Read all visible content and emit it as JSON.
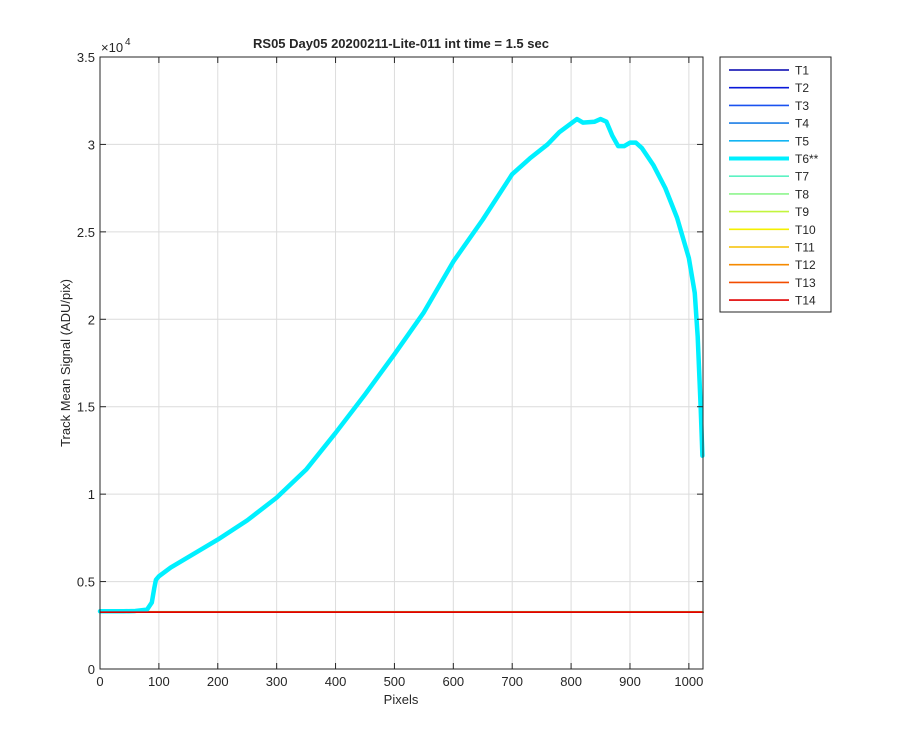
{
  "chart_data": {
    "type": "line",
    "title": "RS05 Day05 20200211-Lite-011 int time = 1.5 sec",
    "xlabel": "Pixels",
    "ylabel": "Track Mean Signal (ADU/pix)",
    "y_exponent_base": "×10",
    "y_exponent_power": "4",
    "xlim": [
      0,
      1024
    ],
    "ylim": [
      0,
      35000
    ],
    "x_ticks": [
      0,
      100,
      200,
      300,
      400,
      500,
      600,
      700,
      800,
      900,
      1000
    ],
    "y_ticks": [
      0,
      5000,
      10000,
      15000,
      20000,
      25000,
      30000,
      35000
    ],
    "y_tick_labels": [
      "0",
      "0.5",
      "1",
      "1.5",
      "2",
      "2.5",
      "3",
      "3.5"
    ],
    "grid": true,
    "legend_position": "outside-right",
    "series": [
      {
        "name": "T1",
        "color": "#0000ad",
        "width": 1.6,
        "x": [
          0,
          1024
        ],
        "y": [
          3250,
          3250
        ]
      },
      {
        "name": "T2",
        "color": "#0a19d9",
        "width": 1.6,
        "x": [
          0,
          1024
        ],
        "y": [
          3250,
          3250
        ]
      },
      {
        "name": "T3",
        "color": "#1a52f0",
        "width": 1.6,
        "x": [
          0,
          1024
        ],
        "y": [
          3250,
          3250
        ]
      },
      {
        "name": "T4",
        "color": "#1e7fe6",
        "width": 1.6,
        "x": [
          0,
          1024
        ],
        "y": [
          3250,
          3250
        ]
      },
      {
        "name": "T5",
        "color": "#13b4f2",
        "width": 1.6,
        "x": [
          0,
          1024
        ],
        "y": [
          3250,
          3250
        ]
      },
      {
        "name": "T6**",
        "color": "#00f0ff",
        "width": 4.5,
        "x": [
          0,
          20,
          40,
          60,
          80,
          88,
          92,
          95,
          100,
          120,
          150,
          180,
          200,
          250,
          300,
          350,
          400,
          450,
          500,
          550,
          600,
          650,
          700,
          730,
          760,
          780,
          800,
          810,
          820,
          840,
          850,
          860,
          870,
          880,
          890,
          900,
          910,
          920,
          940,
          960,
          980,
          1000,
          1010,
          1015,
          1020,
          1023
        ],
        "y": [
          3300,
          3300,
          3300,
          3320,
          3400,
          3800,
          4600,
          5100,
          5300,
          5800,
          6400,
          7000,
          7400,
          8500,
          9800,
          11400,
          13500,
          15700,
          18000,
          20400,
          23300,
          25700,
          28300,
          29200,
          30000,
          30700,
          31200,
          31450,
          31250,
          31300,
          31450,
          31300,
          30500,
          29900,
          29900,
          30100,
          30100,
          29800,
          28800,
          27500,
          25800,
          23500,
          21500,
          19000,
          15000,
          12200
        ]
      },
      {
        "name": "T7",
        "color": "#5cf2c2",
        "width": 1.6,
        "x": [
          0,
          1024
        ],
        "y": [
          3280,
          3280
        ]
      },
      {
        "name": "T8",
        "color": "#8ef58e",
        "width": 1.6,
        "x": [
          0,
          1024
        ],
        "y": [
          3260,
          3260
        ]
      },
      {
        "name": "T9",
        "color": "#c2f53d",
        "width": 1.6,
        "x": [
          0,
          1024
        ],
        "y": [
          3250,
          3250
        ]
      },
      {
        "name": "T10",
        "color": "#f5f000",
        "width": 1.6,
        "x": [
          0,
          1024
        ],
        "y": [
          3250,
          3250
        ]
      },
      {
        "name": "T11",
        "color": "#f5c000",
        "width": 1.6,
        "x": [
          0,
          1024
        ],
        "y": [
          3250,
          3250
        ]
      },
      {
        "name": "T12",
        "color": "#f58a00",
        "width": 1.6,
        "x": [
          0,
          1024
        ],
        "y": [
          3250,
          3250
        ]
      },
      {
        "name": "T13",
        "color": "#f24d00",
        "width": 1.6,
        "x": [
          0,
          1024
        ],
        "y": [
          3250,
          3250
        ]
      },
      {
        "name": "T14",
        "color": "#e00000",
        "width": 1.6,
        "x": [
          0,
          1024
        ],
        "y": [
          3250,
          3250
        ]
      }
    ]
  }
}
